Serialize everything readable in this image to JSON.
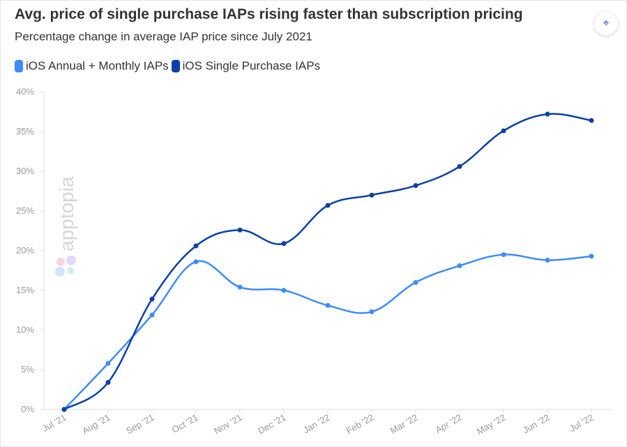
{
  "header": {
    "title": "Avg. price of single purchase IAPs rising faster than subscription pricing",
    "subtitle": "Percentage change in average IAP price since July 2021",
    "screenshot_icon": "screenshot-scan-icon"
  },
  "watermark": "apptopia",
  "chart_data": {
    "type": "line",
    "title": "Avg. price of single purchase IAPs rising faster than subscription pricing",
    "subtitle": "Percentage change in average IAP price since July 2021",
    "xlabel": "",
    "ylabel": "",
    "categories": [
      "Jul '21",
      "Aug '21",
      "Sep '21",
      "Oct '21",
      "Nov '21",
      "Dec '21",
      "Jan '22",
      "Feb '22",
      "Mar '22",
      "Apr '22",
      "May '22",
      "Jun '22",
      "Jul '22"
    ],
    "ylim": [
      0,
      40
    ],
    "yticks": [
      "0%",
      "5%",
      "10%",
      "15%",
      "20%",
      "25%",
      "30%",
      "35%",
      "40%"
    ],
    "grid": false,
    "legend": "top-left",
    "series": [
      {
        "name": "iOS Annual + Monthly IAPs",
        "color": "#3d8bfd",
        "values": [
          0,
          5.8,
          11.9,
          18.6,
          15.4,
          15.0,
          13.1,
          12.3,
          16.0,
          18.1,
          19.5,
          18.8,
          19.3
        ]
      },
      {
        "name": "iOS Single Purchase IAPs",
        "color": "#0a3fa8",
        "values": [
          0,
          3.4,
          13.9,
          20.6,
          22.6,
          20.9,
          25.7,
          27.0,
          28.2,
          30.6,
          35.1,
          37.2,
          36.4
        ]
      }
    ]
  }
}
